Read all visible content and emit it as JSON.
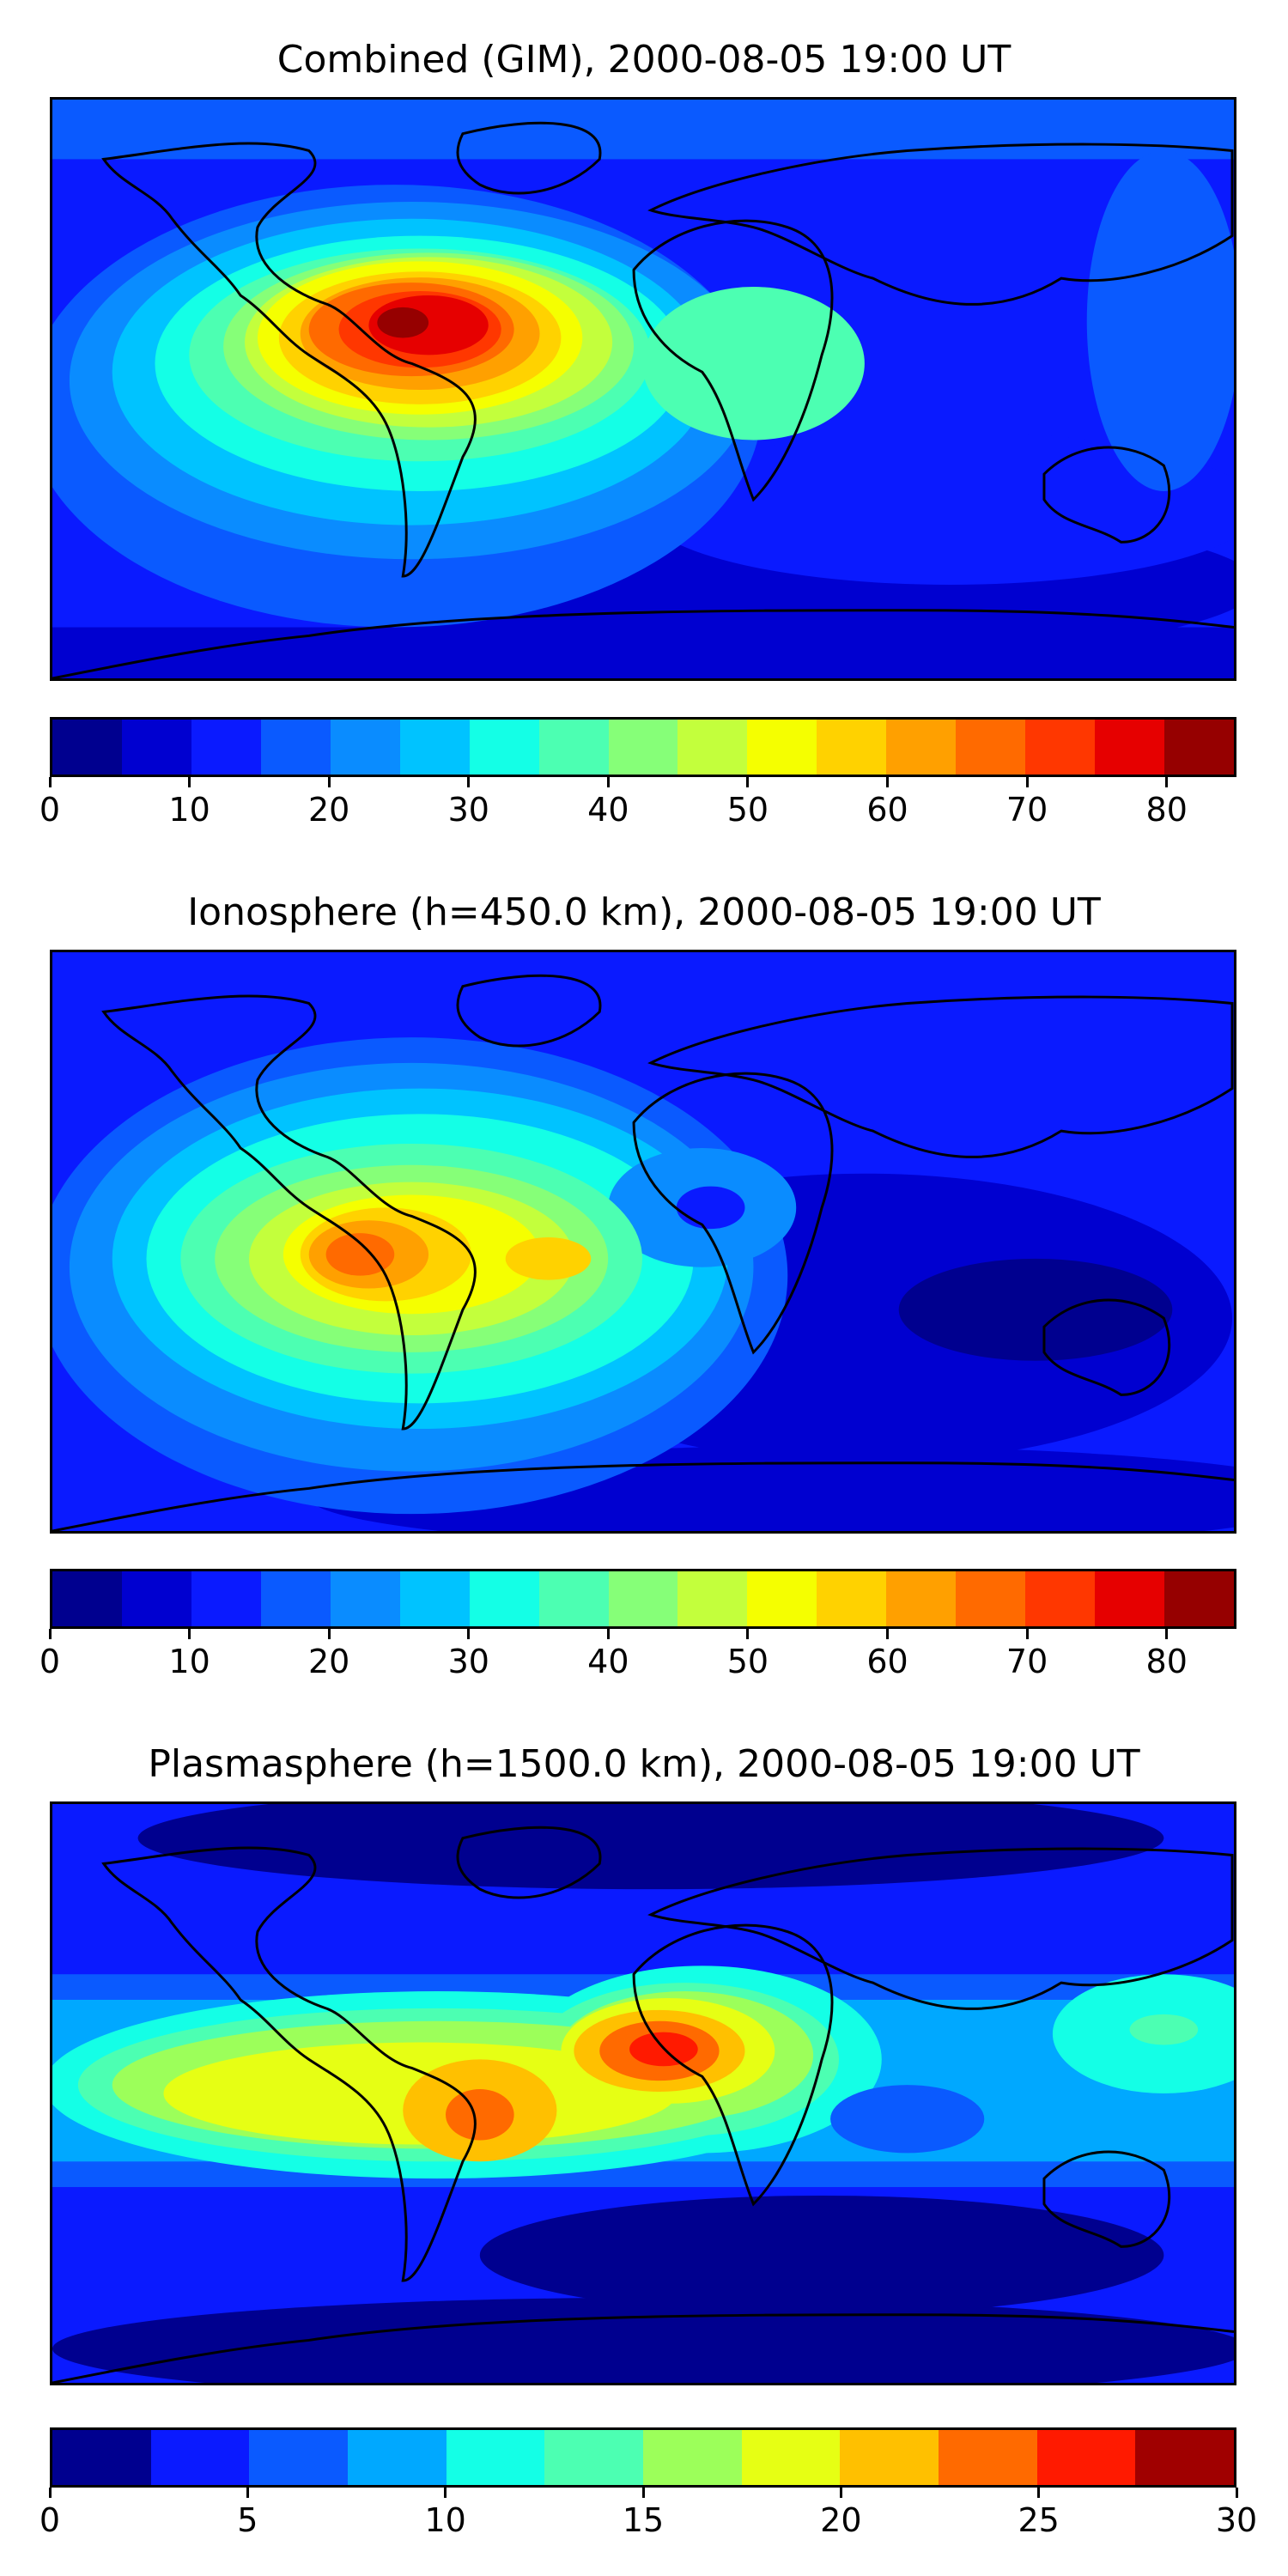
{
  "panels": [
    {
      "title": "Combined (GIM), 2000-08-05 19:00 UT",
      "colorbar": {
        "colors": [
          "#00008f",
          "#0000d0",
          "#0a1aff",
          "#0a5aff",
          "#0a8cff",
          "#00c3ff",
          "#14ffe6",
          "#4cffb2",
          "#86ff78",
          "#c3ff3c",
          "#f5ff00",
          "#ffd200",
          "#ffa000",
          "#ff6a00",
          "#ff3700",
          "#e60000",
          "#960000"
        ],
        "tick_values": [
          0,
          10,
          20,
          30,
          40,
          50,
          60,
          70,
          80
        ],
        "range": [
          0,
          85
        ]
      }
    },
    {
      "title": "Ionosphere  (h=450.0 km), 2000-08-05 19:00 UT",
      "colorbar": {
        "colors": [
          "#00008f",
          "#0000d0",
          "#0a1aff",
          "#0a5aff",
          "#0a8cff",
          "#00c3ff",
          "#14ffe6",
          "#4cffb2",
          "#86ff78",
          "#c3ff3c",
          "#f5ff00",
          "#ffd200",
          "#ffa000",
          "#ff6a00",
          "#ff3700",
          "#e60000",
          "#960000"
        ],
        "tick_values": [
          0,
          10,
          20,
          30,
          40,
          50,
          60,
          70,
          80
        ],
        "range": [
          0,
          85
        ]
      }
    },
    {
      "title": "Plasmasphere (h=1500.0 km), 2000-08-05 19:00 UT",
      "colorbar": {
        "colors": [
          "#00008f",
          "#0a1aff",
          "#0a5aff",
          "#00a8ff",
          "#14ffe6",
          "#4cffb2",
          "#9cff5a",
          "#e6ff14",
          "#ffc000",
          "#ff6a00",
          "#ff1a00",
          "#a00000"
        ],
        "tick_values": [
          0,
          5,
          10,
          15,
          20,
          25,
          30
        ],
        "range": [
          0,
          30
        ]
      }
    }
  ]
}
